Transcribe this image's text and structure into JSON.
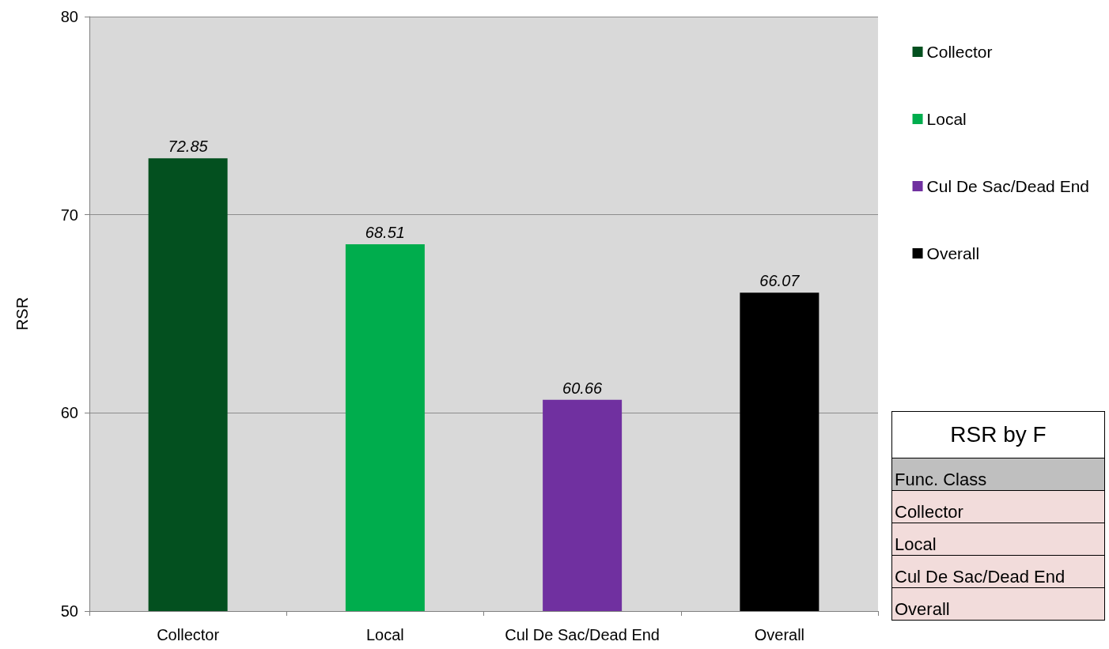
{
  "chart_data": [
    {
      "type": "bar",
      "ylabel": "RSR",
      "categories": [
        "Collector",
        "Local",
        "Cul De Sac/Dead End",
        "Overall"
      ],
      "series": [
        {
          "name": "Collector",
          "color": "#03501f",
          "values": [
            72.85,
            null,
            null,
            null
          ]
        },
        {
          "name": "Local",
          "color": "#00ad4d",
          "values": [
            null,
            68.51,
            null,
            null
          ]
        },
        {
          "name": "Cul De Sac/Dead End",
          "color": "#7030a0",
          "values": [
            null,
            null,
            60.66,
            null
          ]
        },
        {
          "name": "Overall",
          "color": "#000000",
          "values": [
            null,
            null,
            null,
            66.07
          ]
        }
      ],
      "ylim": [
        50,
        80
      ],
      "yticks": [
        50,
        60,
        70,
        80
      ],
      "grid": "y",
      "legend": "right",
      "data_labels": true
    },
    {
      "type": "other",
      "title": "RSR by F",
      "annotations": [
        "Func. Class",
        "Collector",
        "Local",
        "Cul De Sac/Dead End",
        "Overall"
      ]
    }
  ]
}
